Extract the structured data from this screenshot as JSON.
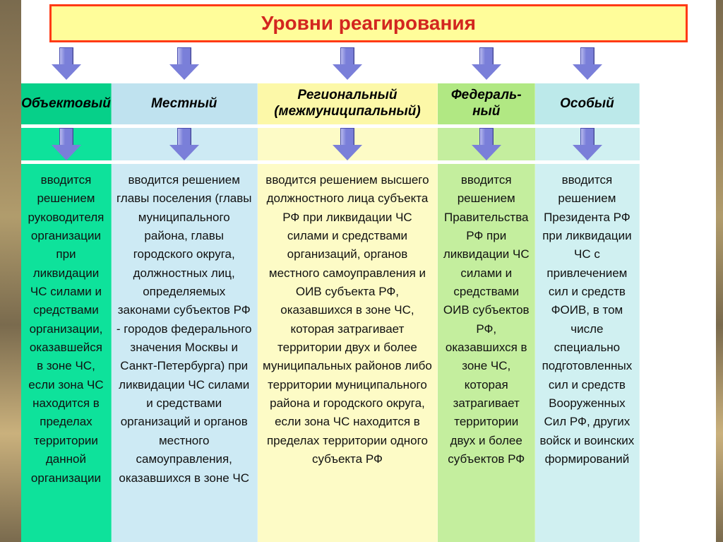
{
  "title": {
    "text": "Уровни реагирования",
    "color": "#d3261f",
    "background": "#fffd9a",
    "border_color": "#ff3a16",
    "fontsize": 28
  },
  "arrow": {
    "fill": "#7a7fd9",
    "stroke": "#4a4fb0",
    "highlight": "#b9bbee"
  },
  "columns": [
    {
      "width_pct": 13,
      "header": "Объектовый",
      "header_bg": "#06d089",
      "body_bg": "#0ee29b",
      "body": "вводится решением руководителя организации при ликвидации ЧС силами и средствами организации, оказавшейся в зоне ЧС, если зона ЧС находится в пределах территории данной организации"
    },
    {
      "width_pct": 21,
      "header": "Местный",
      "header_bg": "#bfe2ef",
      "body_bg": "#cdeaf4",
      "body": "вводится решением главы поселения (главы муниципального района, главы городского округа, должностных лиц, определяемых законами субъектов РФ - городов федерального значения Москвы и Санкт-Петербурга) при ликвидации ЧС силами и средствами организаций и органов местного самоуправления, оказавшихся в зоне ЧС"
    },
    {
      "width_pct": 26,
      "header": "Региональный (межмуниципальный)",
      "header_bg": "#fcf8a8",
      "body_bg": "#fdfbc6",
      "body": "вводится решением высшего должностного лица субъекта РФ при ликвидации ЧС силами и средствами организаций, органов местного самоуправления и ОИВ субъекта РФ, оказавшихся в зоне ЧС, которая затрагивает территории двух и более муниципальных районов либо территории муниципального района и городского округа, если зона ЧС находится в пределах территории одного субъекта РФ"
    },
    {
      "width_pct": 14,
      "header": "Федераль-ный",
      "header_bg": "#b1e883",
      "body_bg": "#c4ee9e",
      "body": "вводится решением Правительства РФ при ликвидации ЧС силами и средствами ОИВ субъектов РФ, оказавшихся в зоне ЧС, которая затрагивает территории двух и более субъектов РФ"
    },
    {
      "width_pct": 15,
      "header": "Особый",
      "header_bg": "#bce9ea",
      "body_bg": "#d0f0f1",
      "body": "вводится решением Президента РФ при ликвидации ЧС с привлечением сил и средств ФОИВ, в том числе специально подготовленных сил и средств Вооруженных Сил РФ, других войск и воинских формирований"
    }
  ]
}
